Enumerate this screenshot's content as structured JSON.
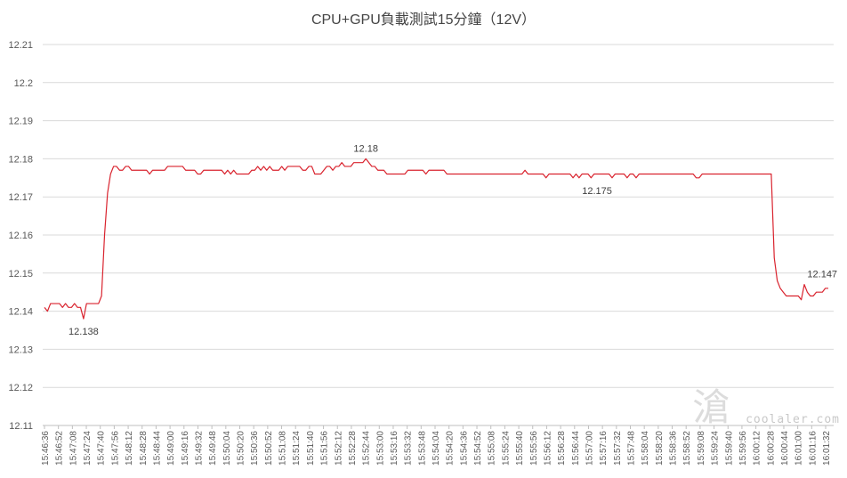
{
  "chart_data": {
    "type": "line",
    "title": "CPU+GPU負載測試15分鐘（12V）",
    "xlabel": "",
    "ylabel": "",
    "ylim": [
      12.11,
      12.21
    ],
    "yticks": [
      "12.11",
      "12.12",
      "12.13",
      "12.14",
      "12.15",
      "12.16",
      "12.17",
      "12.18",
      "12.19",
      "12.2",
      "12.21"
    ],
    "xticks": [
      "15:46:36",
      "15:46:52",
      "15:47:08",
      "15:47:24",
      "15:47:40",
      "15:47:56",
      "15:48:12",
      "15:48:28",
      "15:48:44",
      "15:49:00",
      "15:49:16",
      "15:49:32",
      "15:49:48",
      "15:50:04",
      "15:50:20",
      "15:50:36",
      "15:50:52",
      "15:51:08",
      "15:51:24",
      "15:51:40",
      "15:51:56",
      "15:52:12",
      "15:52:28",
      "15:52:44",
      "15:53:00",
      "15:53:16",
      "15:53:32",
      "15:53:48",
      "15:54:04",
      "15:54:20",
      "15:54:36",
      "15:54:52",
      "15:55:08",
      "15:55:24",
      "15:55:40",
      "15:55:56",
      "15:56:12",
      "15:56:28",
      "15:56:44",
      "15:57:00",
      "15:57:16",
      "15:57:32",
      "15:57:48",
      "15:58:04",
      "15:58:20",
      "15:58:36",
      "15:58:52",
      "15:59:08",
      "15:59:24",
      "15:59:40",
      "15:59:56",
      "16:00:12",
      "16:00:28",
      "16:00:44",
      "16:01:00",
      "16:01:16",
      "16:01:32"
    ],
    "grid": true,
    "line_color": "#d9232e",
    "series": [
      {
        "values": [
          12.141,
          12.14,
          12.142,
          12.142,
          12.142,
          12.142,
          12.141,
          12.142,
          12.141,
          12.141,
          12.142,
          12.141,
          12.141,
          12.138,
          12.142,
          12.142,
          12.142,
          12.142,
          12.142,
          12.144,
          12.16,
          12.171,
          12.176,
          12.178,
          12.178,
          12.177,
          12.177,
          12.178,
          12.178,
          12.177,
          12.177,
          12.177,
          12.177,
          12.177,
          12.177,
          12.176,
          12.177,
          12.177,
          12.177,
          12.177,
          12.177,
          12.178,
          12.178,
          12.178,
          12.178,
          12.178,
          12.178,
          12.177,
          12.177,
          12.177,
          12.177,
          12.176,
          12.176,
          12.177,
          12.177,
          12.177,
          12.177,
          12.177,
          12.177,
          12.177,
          12.176,
          12.177,
          12.176,
          12.177,
          12.176,
          12.176,
          12.176,
          12.176,
          12.176,
          12.177,
          12.177,
          12.178,
          12.177,
          12.178,
          12.177,
          12.178,
          12.177,
          12.177,
          12.177,
          12.178,
          12.177,
          12.178,
          12.178,
          12.178,
          12.178,
          12.178,
          12.177,
          12.177,
          12.178,
          12.178,
          12.176,
          12.176,
          12.176,
          12.177,
          12.178,
          12.178,
          12.177,
          12.178,
          12.178,
          12.179,
          12.178,
          12.178,
          12.178,
          12.179,
          12.179,
          12.179,
          12.179,
          12.18,
          12.179,
          12.178,
          12.178,
          12.177,
          12.177,
          12.177,
          12.176,
          12.176,
          12.176,
          12.176,
          12.176,
          12.176,
          12.176,
          12.177,
          12.177,
          12.177,
          12.177,
          12.177,
          12.177,
          12.176,
          12.177,
          12.177,
          12.177,
          12.177,
          12.177,
          12.177,
          12.176,
          12.176,
          12.176,
          12.176,
          12.176,
          12.176,
          12.176,
          12.176,
          12.176,
          12.176,
          12.176,
          12.176,
          12.176,
          12.176,
          12.176,
          12.176,
          12.176,
          12.176,
          12.176,
          12.176,
          12.176,
          12.176,
          12.176,
          12.176,
          12.176,
          12.176,
          12.177,
          12.176,
          12.176,
          12.176,
          12.176,
          12.176,
          12.176,
          12.175,
          12.176,
          12.176,
          12.176,
          12.176,
          12.176,
          12.176,
          12.176,
          12.176,
          12.175,
          12.176,
          12.175,
          12.176,
          12.176,
          12.176,
          12.175,
          12.176,
          12.176,
          12.176,
          12.176,
          12.176,
          12.176,
          12.175,
          12.176,
          12.176,
          12.176,
          12.176,
          12.175,
          12.176,
          12.176,
          12.175,
          12.176,
          12.176,
          12.176,
          12.176,
          12.176,
          12.176,
          12.176,
          12.176,
          12.176,
          12.176,
          12.176,
          12.176,
          12.176,
          12.176,
          12.176,
          12.176,
          12.176,
          12.176,
          12.176,
          12.175,
          12.175,
          12.176,
          12.176,
          12.176,
          12.176,
          12.176,
          12.176,
          12.176,
          12.176,
          12.176,
          12.176,
          12.176,
          12.176,
          12.176,
          12.176,
          12.176,
          12.176,
          12.176,
          12.176,
          12.176,
          12.176,
          12.176,
          12.176,
          12.176,
          12.176,
          12.154,
          12.148,
          12.146,
          12.145,
          12.144,
          12.144,
          12.144,
          12.144,
          12.144,
          12.143,
          12.147,
          12.145,
          12.144,
          12.144,
          12.145,
          12.145,
          12.145,
          12.146,
          12.146
        ]
      }
    ],
    "annotations": [
      {
        "label": "12.138",
        "index": 13,
        "value": 12.138,
        "placement": "below"
      },
      {
        "label": "12.18",
        "index": 107,
        "value": 12.18,
        "placement": "above"
      },
      {
        "label": "12.175",
        "index": 184,
        "value": 12.175,
        "placement": "below"
      },
      {
        "label": "12.147",
        "index": 259,
        "value": 12.147,
        "placement": "above"
      }
    ]
  },
  "watermark": {
    "symbol": "滄",
    "text": "coolaler.com"
  }
}
